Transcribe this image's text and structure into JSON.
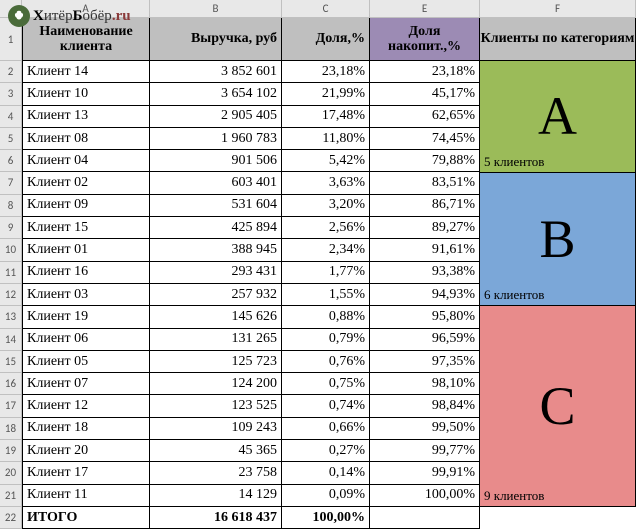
{
  "watermark": {
    "part1": "Х",
    "part2": "итёр",
    "part3": "Б",
    "part4": "обёр",
    "suffix": ".ru"
  },
  "col_letters": [
    "A",
    "B",
    "C",
    "E",
    "F"
  ],
  "row_numbers": [
    1,
    2,
    3,
    4,
    5,
    6,
    7,
    8,
    9,
    10,
    11,
    12,
    13,
    14,
    15,
    16,
    17,
    18,
    19,
    20,
    21,
    22
  ],
  "headers": {
    "name": "Наименование клиента",
    "rev": "Выручка, руб",
    "share": "Доля,%",
    "cum": "Доля накопит.,%",
    "cat": "Клиенты по категориям"
  },
  "rows": [
    {
      "name": "Клиент 14",
      "rev": "3 852 601",
      "share": "23,18%",
      "cum": "23,18%"
    },
    {
      "name": "Клиент 10",
      "rev": "3 654 102",
      "share": "21,99%",
      "cum": "45,17%"
    },
    {
      "name": "Клиент 13",
      "rev": "2 905 405",
      "share": "17,48%",
      "cum": "62,65%"
    },
    {
      "name": "Клиент 08",
      "rev": "1 960 783",
      "share": "11,80%",
      "cum": "74,45%"
    },
    {
      "name": "Клиент 04",
      "rev": "901 506",
      "share": "5,42%",
      "cum": "79,88%"
    },
    {
      "name": "Клиент 02",
      "rev": "603 401",
      "share": "3,63%",
      "cum": "83,51%"
    },
    {
      "name": "Клиент 09",
      "rev": "531 604",
      "share": "3,20%",
      "cum": "86,71%"
    },
    {
      "name": "Клиент 15",
      "rev": "425 894",
      "share": "2,56%",
      "cum": "89,27%"
    },
    {
      "name": "Клиент 01",
      "rev": "388 945",
      "share": "2,34%",
      "cum": "91,61%"
    },
    {
      "name": "Клиент 16",
      "rev": "293 431",
      "share": "1,77%",
      "cum": "93,38%"
    },
    {
      "name": "Клиент 03",
      "rev": "257 932",
      "share": "1,55%",
      "cum": "94,93%"
    },
    {
      "name": "Клиент 19",
      "rev": "145 626",
      "share": "0,88%",
      "cum": "95,80%"
    },
    {
      "name": "Клиент 06",
      "rev": "131 265",
      "share": "0,79%",
      "cum": "96,59%"
    },
    {
      "name": "Клиент 05",
      "rev": "125 723",
      "share": "0,76%",
      "cum": "97,35%"
    },
    {
      "name": "Клиент 07",
      "rev": "124 200",
      "share": "0,75%",
      "cum": "98,10%"
    },
    {
      "name": "Клиент 12",
      "rev": "123 525",
      "share": "0,74%",
      "cum": "98,84%"
    },
    {
      "name": "Клиент 18",
      "rev": "109 243",
      "share": "0,66%",
      "cum": "99,50%"
    },
    {
      "name": "Клиент 20",
      "rev": "45 365",
      "share": "0,27%",
      "cum": "99,77%"
    },
    {
      "name": "Клиент 17",
      "rev": "23 758",
      "share": "0,14%",
      "cum": "99,91%"
    },
    {
      "name": "Клиент 11",
      "rev": "14 129",
      "share": "0,09%",
      "cum": "100,00%"
    }
  ],
  "total": {
    "name": "ИТОГО",
    "rev": "16 618 437",
    "share": "100,00%"
  },
  "cats": [
    {
      "letter": "A",
      "rows": 5,
      "count": "5 клиентов",
      "bg": "#9bbb59"
    },
    {
      "letter": "B",
      "rows": 6,
      "count": "6 клиентов",
      "bg": "#7ba7d8"
    },
    {
      "letter": "C",
      "rows": 9,
      "count": "9 клиентов",
      "bg": "#e88b8b"
    }
  ],
  "row_height": 22.3
}
